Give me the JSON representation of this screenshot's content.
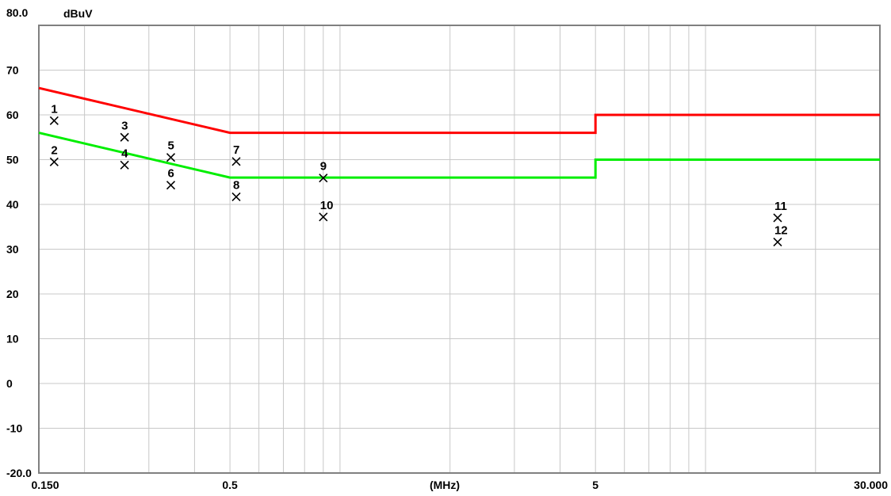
{
  "chart_data": {
    "type": "line",
    "y_unit": "dBuV",
    "x_unit": "(MHz)",
    "x_scale": "log",
    "xlim": [
      0.15,
      30
    ],
    "ylim": [
      -20,
      80
    ],
    "grid": true,
    "y_tick_labels": [
      "80.0",
      "70",
      "60",
      "50",
      "40",
      "30",
      "20",
      "10",
      "0",
      "-10",
      "-20.0"
    ],
    "y_tick_values": [
      80,
      70,
      60,
      50,
      40,
      30,
      20,
      10,
      0,
      -10,
      -20
    ],
    "x_tick_labels": [
      {
        "x": 0.15,
        "label": "0.150"
      },
      {
        "x": 0.5,
        "label": "0.5"
      },
      {
        "x": 5,
        "label": "5"
      },
      {
        "x": 30,
        "label": "30.000"
      }
    ],
    "x_gridlines": [
      0.2,
      0.3,
      0.4,
      0.5,
      0.6,
      0.7,
      0.8,
      0.9,
      1,
      2,
      3,
      4,
      5,
      6,
      7,
      8,
      9,
      10,
      20
    ],
    "y_gridlines": [
      -10,
      0,
      10,
      20,
      30,
      40,
      50,
      60,
      70
    ],
    "series": [
      {
        "color": "#ff0000",
        "points": [
          [
            0.15,
            66
          ],
          [
            0.5,
            56
          ],
          [
            5,
            56
          ],
          [
            5,
            60
          ],
          [
            30,
            60
          ]
        ]
      },
      {
        "color": "#00ee00",
        "points": [
          [
            0.15,
            56
          ],
          [
            0.5,
            46
          ],
          [
            5,
            46
          ],
          [
            5,
            50
          ],
          [
            30,
            50
          ]
        ]
      }
    ],
    "markers": [
      {
        "label": "1",
        "x": 0.1652,
        "y": 58.7
      },
      {
        "label": "2",
        "x": 0.1652,
        "y": 49.5
      },
      {
        "label": "3",
        "x": 0.2574,
        "y": 55.0
      },
      {
        "label": "4",
        "x": 0.2574,
        "y": 48.8
      },
      {
        "label": "5",
        "x": 0.3445,
        "y": 50.5
      },
      {
        "label": "6",
        "x": 0.3445,
        "y": 44.3
      },
      {
        "label": "7",
        "x": 0.5201,
        "y": 49.6
      },
      {
        "label": "8",
        "x": 0.5201,
        "y": 41.7
      },
      {
        "label": "9",
        "x": 0.9,
        "y": 45.9
      },
      {
        "label": "10",
        "x": 0.9,
        "y": 37.2
      },
      {
        "label": "11",
        "x": 15.75,
        "y": 37.0
      },
      {
        "label": "12",
        "x": 15.75,
        "y": 31.6
      }
    ]
  }
}
